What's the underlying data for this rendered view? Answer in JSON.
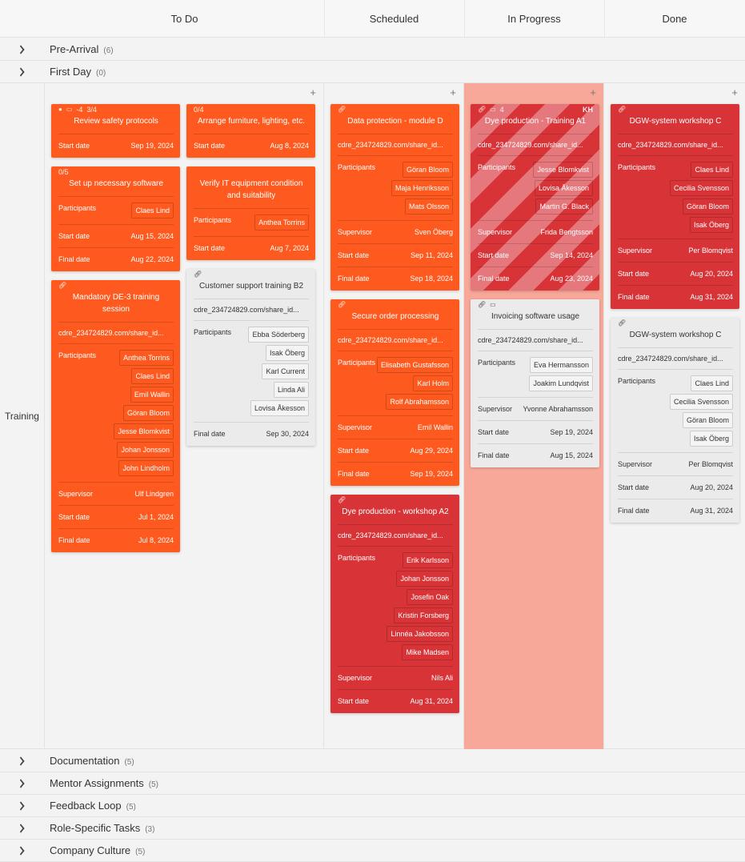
{
  "columns": [
    "To Do",
    "Scheduled",
    "In Progress",
    "Done"
  ],
  "groups_top": [
    {
      "name": "Pre-Arrival",
      "count": "(6)"
    },
    {
      "name": "First Day",
      "count": "(0)"
    }
  ],
  "swimlane": {
    "name": "Training"
  },
  "groups_bottom": [
    {
      "name": "Documentation",
      "count": "(5)"
    },
    {
      "name": "Mentor Assignments",
      "count": "(5)"
    },
    {
      "name": "Feedback Loop",
      "count": "(5)"
    },
    {
      "name": "Role-Specific Tasks",
      "count": "(3)"
    },
    {
      "name": "Company Culture",
      "count": "(5)"
    }
  ],
  "colors": {
    "orange": "#fe5a1f",
    "red": "#d83438",
    "grey": "#ebebeb",
    "in_progress_bg": "#f7a899"
  },
  "lanes": [
    {
      "stacks": [
        [
          {
            "color": "orange",
            "badges": [
              "comment-icon",
              "calendar-icon",
              "-4",
              "3/4"
            ],
            "title": "Review safety protocols",
            "fields": [
              {
                "label": "Start date",
                "value": "Sep 19, 2024"
              }
            ]
          },
          {
            "color": "orange",
            "badges": [
              "0/5"
            ],
            "title": "Set up necessary software",
            "fields": [
              {
                "label": "Participants",
                "chips": [
                  "Claes Lind"
                ]
              },
              {
                "label": "Start date",
                "value": "Aug 15, 2024"
              },
              {
                "label": "Final date",
                "value": "Aug 22, 2024"
              }
            ]
          },
          {
            "color": "orange",
            "badges": [
              "link-icon"
            ],
            "title": "Mandatory DE-3 training session",
            "link": "cdre_234724829.com/share_id...",
            "fields": [
              {
                "label": "Participants",
                "chips": [
                  "Anthea Torrins",
                  "Claes Lind",
                  "Emil Wallin",
                  "Göran Bloom",
                  "Jesse Blomkvist",
                  "Johan Jonsson",
                  "John Lindholm"
                ]
              },
              {
                "label": "Supervisor",
                "value": "Ulf Lindgren"
              },
              {
                "label": "Start date",
                "value": "Jul 1, 2024"
              },
              {
                "label": "Final date",
                "value": "Jul 8, 2024"
              }
            ]
          }
        ],
        [
          {
            "color": "orange",
            "badges": [
              "0/4"
            ],
            "title": "Arrange furniture, lighting, etc.",
            "fields": [
              {
                "label": "Start date",
                "value": "Aug 8, 2024"
              }
            ]
          },
          {
            "color": "orange",
            "badges": [],
            "title": "Verify IT equipment condition and suitability",
            "fields": [
              {
                "label": "Participants",
                "chips": [
                  "Anthea Torrins"
                ]
              },
              {
                "label": "Start date",
                "value": "Aug 7, 2024"
              }
            ]
          },
          {
            "color": "grey",
            "badges": [
              "link-icon"
            ],
            "title": "Customer support training B2",
            "link": "cdre_234724829.com/share_id...",
            "fields": [
              {
                "label": "Participants",
                "chips": [
                  "Ebba Söderberg",
                  "Isak Öberg",
                  "Karl Current",
                  "Linda Ali",
                  "Lovisa Åkesson"
                ]
              },
              {
                "label": "Final date",
                "value": "Sep 30, 2024"
              }
            ]
          }
        ]
      ]
    },
    {
      "stacks": [
        [
          {
            "color": "orange",
            "badges": [
              "link-icon"
            ],
            "title": "Data protection - module D",
            "link": "cdre_234724829.com/share_id...",
            "fields": [
              {
                "label": "Participants",
                "chips": [
                  "Göran Bloom",
                  "Maja Henriksson",
                  "Mats Olsson"
                ]
              },
              {
                "label": "Supervisor",
                "value": "Sven Öberg"
              },
              {
                "label": "Start date",
                "value": "Sep 11, 2024"
              },
              {
                "label": "Final date",
                "value": "Sep 18, 2024"
              }
            ]
          },
          {
            "color": "orange",
            "badges": [
              "link-icon"
            ],
            "title": "Secure order processing",
            "link": "cdre_234724829.com/share_id...",
            "fields": [
              {
                "label": "Participants",
                "chips": [
                  "Elisabeth Gustafsson",
                  "Karl Holm",
                  "Rolf Abrahamsson"
                ]
              },
              {
                "label": "Supervisor",
                "value": "Emil Wallin"
              },
              {
                "label": "Start date",
                "value": "Aug 29, 2024"
              },
              {
                "label": "Final date",
                "value": "Sep 19, 2024"
              }
            ]
          },
          {
            "color": "red",
            "badges": [
              "link-icon"
            ],
            "title": "Dye production - workshop A2",
            "link": "cdre_234724829.com/share_id...",
            "fields": [
              {
                "label": "Participants",
                "chips": [
                  "Erik Karlsson",
                  "Johan Jonsson",
                  "Josefin Oak",
                  "Kristin Forsberg",
                  "Linnéa Jakobsson",
                  "Mike Madsen"
                ]
              },
              {
                "label": "Supervisor",
                "value": "Nils Ali"
              },
              {
                "label": "Start date",
                "value": "Aug 31, 2024"
              }
            ]
          }
        ]
      ]
    },
    {
      "stacks": [
        [
          {
            "color": "striped",
            "badges": [
              "link-icon",
              "calendar-icon",
              "4"
            ],
            "initials": "KH",
            "title": "Dye production - Training A1",
            "link": "cdre_234724829.com/share_id...",
            "fields": [
              {
                "label": "Participants",
                "chips": [
                  "Jesse Blomkvist",
                  "Lovisa Åkesson",
                  "Martin G. Black"
                ]
              },
              {
                "label": "Supervisor",
                "value": "Frida Bengtsson"
              },
              {
                "label": "Start date",
                "value": "Sep 14, 2024"
              },
              {
                "label": "Final date",
                "value": "Aug 23, 2024"
              }
            ]
          },
          {
            "color": "grey",
            "badges": [
              "link-icon",
              "calendar-icon"
            ],
            "title": "Invoicing software usage",
            "link": "cdre_234724829.com/share_id...",
            "fields": [
              {
                "label": "Participants",
                "chips": [
                  "Eva Hermansson",
                  "Joakim Lundqvist"
                ]
              },
              {
                "label": "Supervisor",
                "value": "Yvonne Abrahamsson"
              },
              {
                "label": "Start date",
                "value": "Sep 19, 2024"
              },
              {
                "label": "Final date",
                "value": "Aug 15, 2024"
              }
            ]
          }
        ]
      ]
    },
    {
      "stacks": [
        [
          {
            "color": "red",
            "badges": [
              "link-icon"
            ],
            "title": "DGW-system workshop C",
            "link": "cdre_234724829.com/share_id...",
            "fields": [
              {
                "label": "Participants",
                "chips": [
                  "Claes Lind",
                  "Cecilia Svensson",
                  "Göran Bloom",
                  "Isak Öberg"
                ]
              },
              {
                "label": "Supervisor",
                "value": "Per Blomqvist"
              },
              {
                "label": "Start date",
                "value": "Aug 20, 2024"
              },
              {
                "label": "Final date",
                "value": "Aug 31, 2024"
              }
            ]
          },
          {
            "color": "grey",
            "badges": [
              "link-icon"
            ],
            "title": "DGW-system workshop C",
            "link": "cdre_234724829.com/share_id...",
            "fields": [
              {
                "label": "Participants",
                "chips": [
                  "Claes Lind",
                  "Cecilia Svensson",
                  "Göran Bloom",
                  "Isak Öberg"
                ]
              },
              {
                "label": "Supervisor",
                "value": "Per Blomqvist"
              },
              {
                "label": "Start date",
                "value": "Aug 20, 2024"
              },
              {
                "label": "Final date",
                "value": "Aug 31, 2024"
              }
            ]
          }
        ]
      ]
    }
  ]
}
